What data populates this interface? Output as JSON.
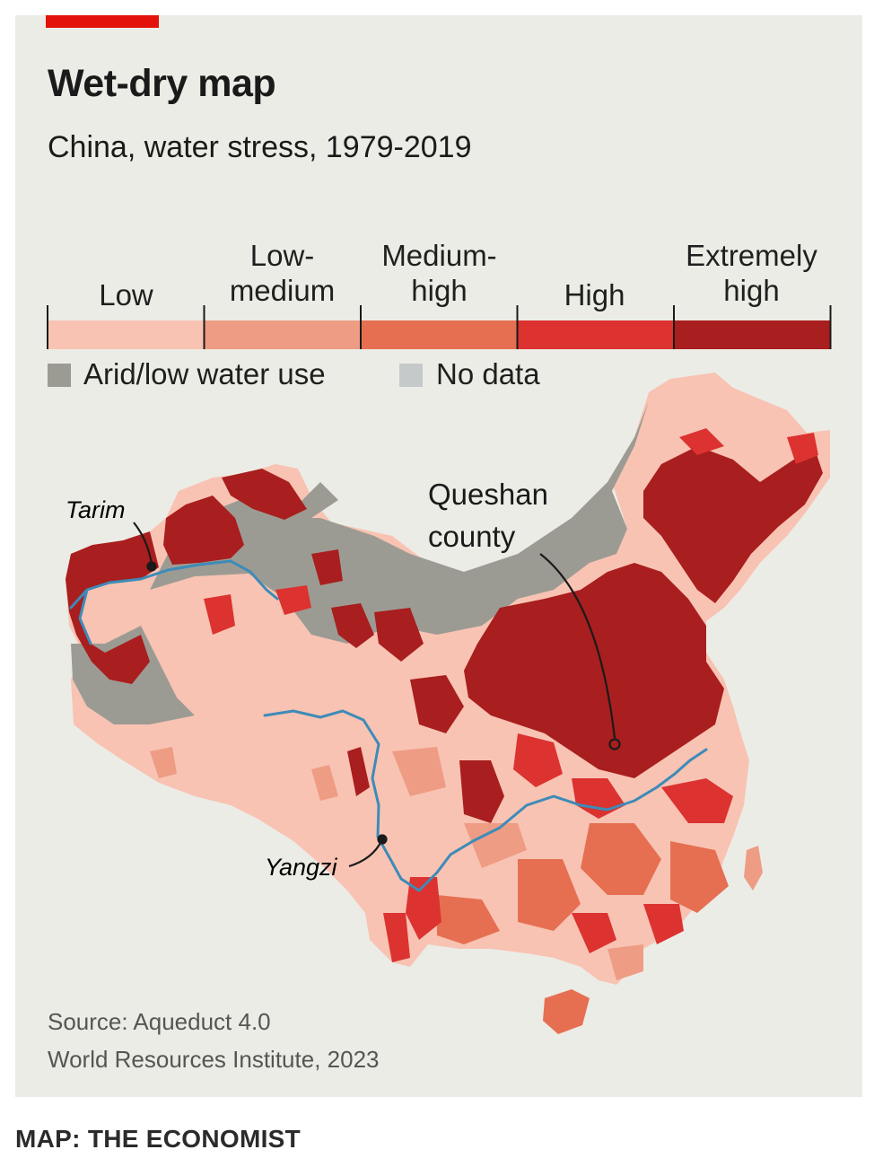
{
  "header": {
    "title": "Wet-dry map",
    "subtitle": "China, water stress, 1979-2019"
  },
  "legend": {
    "categories": [
      {
        "label": "Low",
        "color": "#F8C3B3"
      },
      {
        "label": "Low-\nmedium",
        "color": "#EE9C84"
      },
      {
        "label": "Medium-\nhigh",
        "color": "#E66F52"
      },
      {
        "label": "High",
        "color": "#DC3230"
      },
      {
        "label": "Extremely\nhigh",
        "color": "#A91E1E"
      }
    ],
    "extra": [
      {
        "label": "Arid/low water use",
        "color": "#9C9B93"
      },
      {
        "label": "No data",
        "color": "#C6C9CA"
      }
    ]
  },
  "map": {
    "region": "China",
    "colors": {
      "low": "#F8C3B3",
      "low_medium": "#EE9C84",
      "medium_high": "#E66F52",
      "high": "#DC3230",
      "extremely_high": "#A91E1E",
      "arid": "#9C9B93",
      "river": "#3D8BB8"
    },
    "annotations": {
      "tarim": "Tarim",
      "yangzi": "Yangzi",
      "queshan_line1": "Queshan",
      "queshan_line2": "county"
    }
  },
  "footer": {
    "source_line1": "Source: Aqueduct 4.0",
    "source_line2": "World Resources Institute, 2023",
    "credit": "MAP: THE ECONOMIST"
  }
}
